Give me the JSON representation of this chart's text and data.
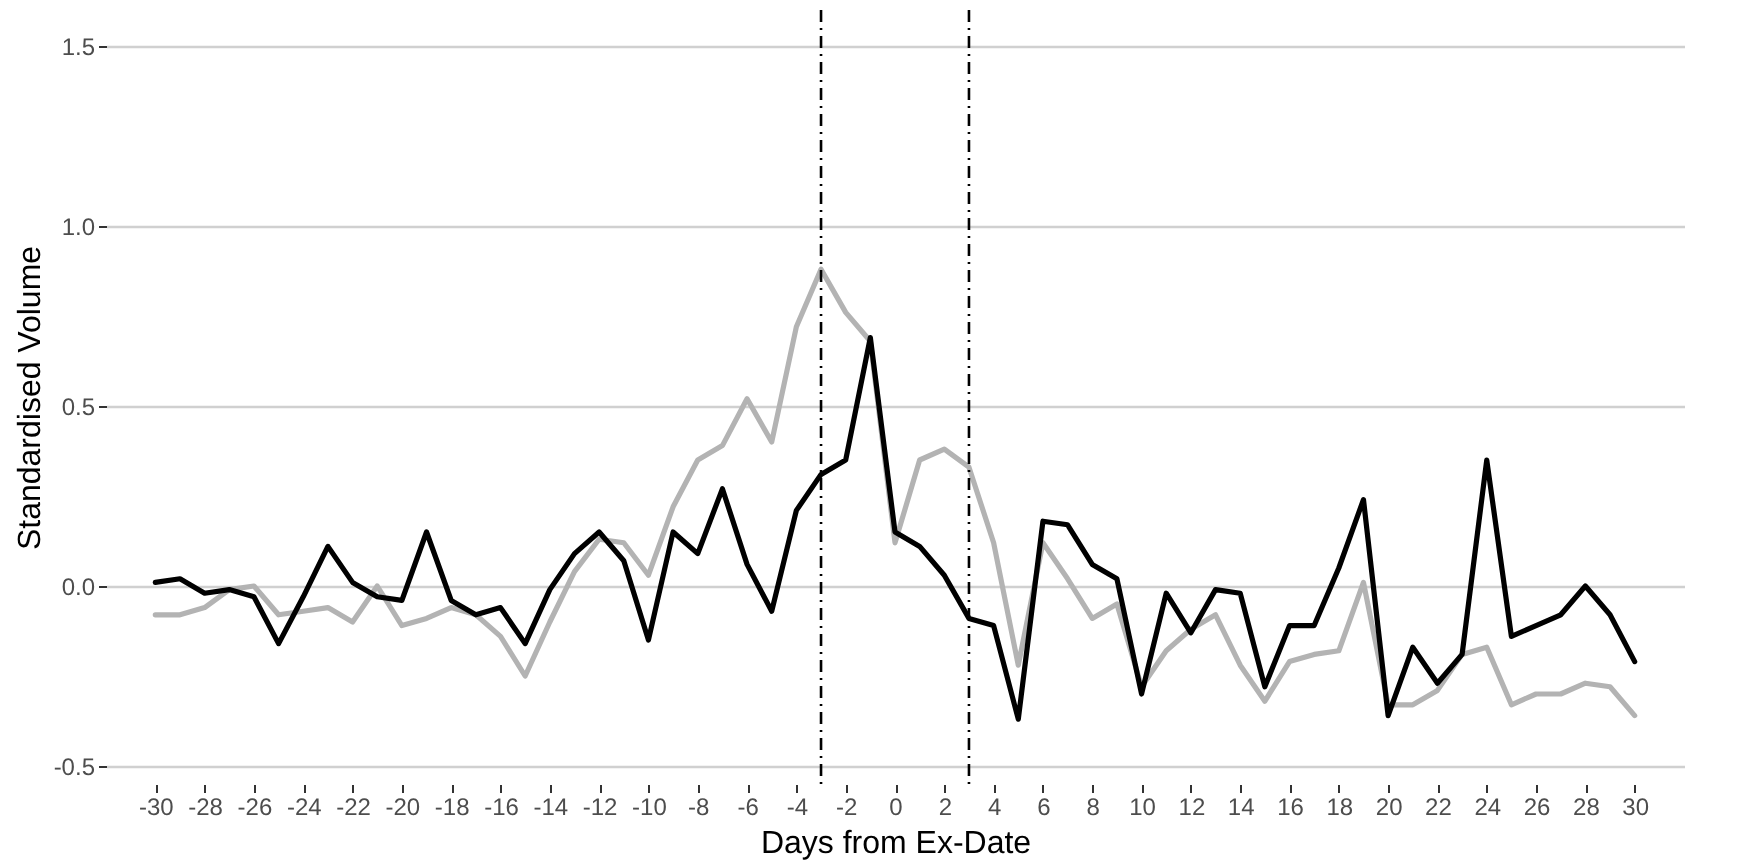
{
  "chart_data": {
    "type": "line",
    "xlabel": "Days from Ex-Date",
    "ylabel": "Standardised Volume",
    "x": [
      -30,
      -29,
      -28,
      -27,
      -26,
      -25,
      -24,
      -23,
      -22,
      -21,
      -20,
      -19,
      -18,
      -17,
      -16,
      -15,
      -14,
      -13,
      -12,
      -11,
      -10,
      -9,
      -8,
      -7,
      -6,
      -5,
      -4,
      -3,
      -2,
      -1,
      0,
      1,
      2,
      3,
      4,
      5,
      6,
      7,
      8,
      9,
      10,
      11,
      12,
      13,
      14,
      15,
      16,
      17,
      18,
      19,
      20,
      21,
      22,
      23,
      24,
      25,
      26,
      27,
      28,
      29,
      30
    ],
    "series": [
      {
        "color": "#b3b3b3",
        "values": [
          -0.08,
          -0.08,
          -0.06,
          -0.01,
          0.0,
          -0.08,
          -0.07,
          -0.06,
          -0.1,
          0.0,
          -0.11,
          -0.09,
          -0.06,
          -0.08,
          -0.14,
          -0.25,
          -0.1,
          0.04,
          0.13,
          0.12,
          0.03,
          0.22,
          0.35,
          0.39,
          0.52,
          0.4,
          0.72,
          0.88,
          0.76,
          0.68,
          0.12,
          0.35,
          0.38,
          0.33,
          0.12,
          -0.22,
          0.12,
          0.02,
          -0.09,
          -0.05,
          -0.28,
          -0.18,
          -0.12,
          -0.08,
          -0.22,
          -0.32,
          -0.21,
          -0.19,
          -0.18,
          0.01,
          -0.33,
          -0.33,
          -0.29,
          -0.19,
          -0.17,
          -0.33,
          -0.3,
          -0.3,
          -0.27,
          -0.28,
          -0.36
        ]
      },
      {
        "color": "#000000",
        "values": [
          0.01,
          0.02,
          -0.02,
          -0.01,
          -0.03,
          -0.16,
          -0.03,
          0.11,
          0.01,
          -0.03,
          -0.04,
          0.15,
          -0.04,
          -0.08,
          -0.06,
          -0.16,
          -0.01,
          0.09,
          0.15,
          0.07,
          -0.15,
          0.15,
          0.09,
          0.27,
          0.06,
          -0.07,
          0.21,
          0.31,
          0.35,
          0.69,
          0.15,
          0.11,
          0.03,
          -0.09,
          -0.11,
          -0.37,
          0.18,
          0.17,
          0.06,
          0.02,
          -0.3,
          -0.02,
          -0.13,
          -0.01,
          -0.02,
          -0.28,
          -0.11,
          -0.11,
          0.05,
          0.24,
          -0.36,
          -0.17,
          -0.27,
          -0.19,
          0.35,
          -0.14,
          -0.11,
          -0.08,
          0.0,
          -0.08,
          -0.21
        ]
      }
    ],
    "xlim": [
      -32,
      32
    ],
    "xticks": [
      -30,
      -28,
      -26,
      -24,
      -22,
      -20,
      -18,
      -16,
      -14,
      -12,
      -10,
      -8,
      -6,
      -4,
      -2,
      0,
      2,
      4,
      6,
      8,
      10,
      12,
      14,
      16,
      18,
      20,
      22,
      24,
      26,
      28,
      30
    ],
    "ylim": [
      -0.55,
      1.6
    ],
    "yticks": [
      {
        "value": -0.5,
        "label": "-0.5"
      },
      {
        "value": 0,
        "label": "0.0"
      },
      {
        "value": 0.5,
        "label": "0.5"
      },
      {
        "value": 1,
        "label": "1.0"
      },
      {
        "value": 1.5,
        "label": "1.5"
      }
    ],
    "grid": "y",
    "line_style": "solid",
    "ref_lines": [
      {
        "axis": "x",
        "value": -3,
        "color": "#000000",
        "line_style": "dashdot"
      },
      {
        "axis": "x",
        "value": 3,
        "color": "#000000",
        "line_style": "dashdot"
      }
    ]
  }
}
